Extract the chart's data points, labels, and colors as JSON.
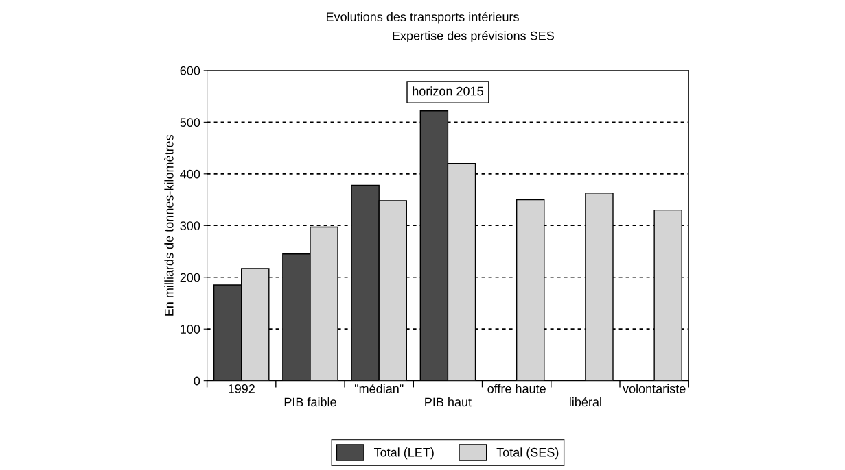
{
  "chart_data": {
    "type": "bar",
    "title": "Evolutions des transports intérieurs",
    "subtitle": "Expertise des prévisions SES",
    "ylabel": "En milliards de tonnes-kilomètres",
    "categories": [
      "1992",
      "PIB faible",
      "\"médian\"",
      "PIB haut",
      "offre haute",
      "libéral",
      "volontariste"
    ],
    "series": [
      {
        "name": "Total (LET)",
        "color": "#4a4a4a",
        "values": [
          185,
          245,
          378,
          522,
          null,
          null,
          null
        ]
      },
      {
        "name": "Total (SES)",
        "color": "#d4d4d4",
        "values": [
          217,
          297,
          348,
          420,
          350,
          363,
          330
        ]
      }
    ],
    "annotations": [
      "horizon 2015"
    ],
    "ylim": [
      0,
      600
    ],
    "yticks": [
      0,
      100,
      200,
      300,
      400,
      500,
      600
    ],
    "grid": "y",
    "legend": "bottom"
  }
}
